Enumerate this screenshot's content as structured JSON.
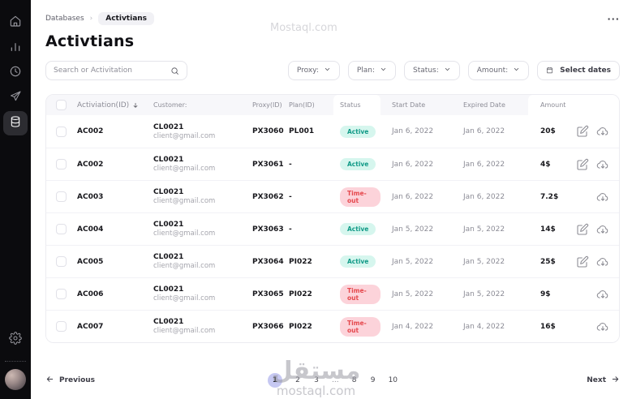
{
  "sidebar": {
    "items": [
      "home",
      "analytics",
      "history",
      "send",
      "databases",
      "settings"
    ],
    "active_item": "databases"
  },
  "header": {
    "breadcrumb": {
      "parent": "Databases",
      "current": "Activtians"
    },
    "menu": "···"
  },
  "page": {
    "title": "Activtians"
  },
  "search": {
    "placeholder": "Search or Activitation"
  },
  "filters": [
    {
      "label": "Proxy:"
    },
    {
      "label": "Plan:"
    },
    {
      "label": "Status:"
    },
    {
      "label": "Amount:"
    },
    {
      "label": "Select dates"
    }
  ],
  "table": {
    "headers": [
      "Activiation(ID)",
      "Customer:",
      "Proxy(ID)",
      "Plan(ID)",
      "Status",
      "Start Date",
      "Expired Date",
      "Amount"
    ],
    "sorted_by": "Activiation(ID)",
    "rows": [
      {
        "id": "AC002",
        "customer": "CL0021",
        "email": "client@gmail.com",
        "proxy": "PX3060",
        "plan": "PL001",
        "status": "Active",
        "start": "Jan 6, 2022",
        "expired": "Jan 6, 2022",
        "amount": "20$",
        "editable": true
      },
      {
        "id": "AC002",
        "customer": "CL0021",
        "email": "client@gmail.com",
        "proxy": "PX3061",
        "plan": "-",
        "status": "Active",
        "start": "Jan 6, 2022",
        "expired": "Jan 6, 2022",
        "amount": "4$",
        "editable": true
      },
      {
        "id": "AC003",
        "customer": "CL0021",
        "email": "client@gmail.com",
        "proxy": "PX3062",
        "plan": "-",
        "status": "Time-out",
        "start": "Jan 6, 2022",
        "expired": "Jan 6, 2022",
        "amount": "7.2$",
        "editable": false
      },
      {
        "id": "AC004",
        "customer": "CL0021",
        "email": "client@gmail.com",
        "proxy": "PX3063",
        "plan": "-",
        "status": "Active",
        "start": "Jan 5, 2022",
        "expired": "Jan 5, 2022",
        "amount": "14$",
        "editable": true
      },
      {
        "id": "AC005",
        "customer": "CL0021",
        "email": "client@gmail.com",
        "proxy": "PX3064",
        "plan": "PI022",
        "status": "Active",
        "start": "Jan 5, 2022",
        "expired": "Jan 5, 2022",
        "amount": "25$",
        "editable": true
      },
      {
        "id": "AC006",
        "customer": "CL0021",
        "email": "client@gmail.com",
        "proxy": "PX3065",
        "plan": "PI022",
        "status": "Time-out",
        "start": "Jan 5, 2022",
        "expired": "Jan 5, 2022",
        "amount": "9$",
        "editable": false
      },
      {
        "id": "AC007",
        "customer": "CL0021",
        "email": "client@gmail.com",
        "proxy": "PX3066",
        "plan": "PI022",
        "status": "Time-out",
        "start": "Jan 4, 2022",
        "expired": "Jan 4, 2022",
        "amount": "16$",
        "editable": false
      }
    ]
  },
  "pagination": {
    "previous": "Previous",
    "next": "Next",
    "pages": [
      "1",
      "2",
      "3",
      "...",
      "8",
      "9",
      "10"
    ],
    "active": "1"
  },
  "watermarks": {
    "top": "Mostaql.com",
    "center_ar": "مستقل",
    "center_en": "mostaql.com"
  },
  "colors": {
    "sidebar_bg": "#0b0b0e",
    "active_badge_bg": "#d6f6ee",
    "active_badge_text": "#119a87",
    "timeout_badge_bg": "#fcd3da",
    "timeout_badge_text": "#e5484d",
    "pagination_active_bg": "#c6c8f2",
    "header_row_bg": "#f7f7fa"
  }
}
